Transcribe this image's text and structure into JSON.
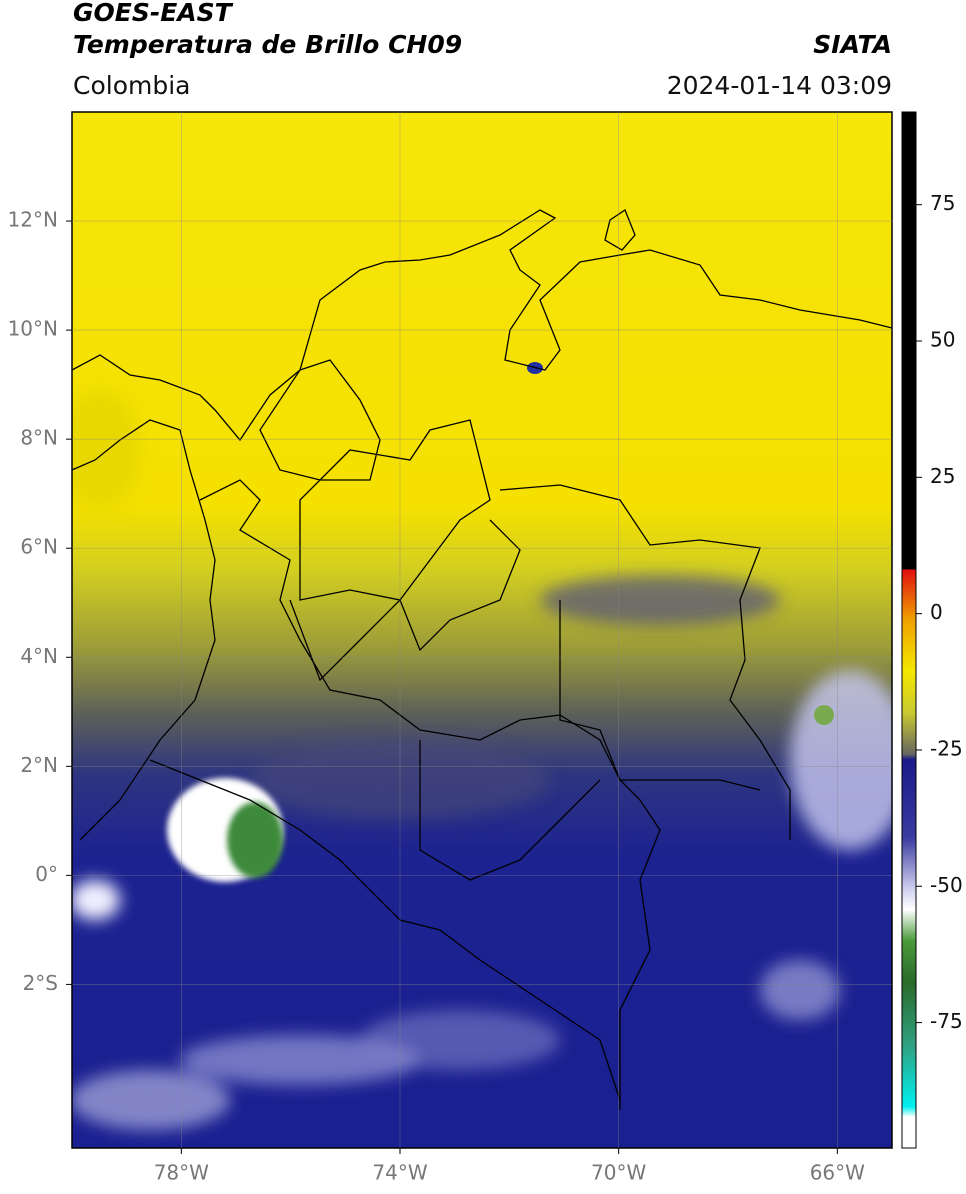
{
  "header": {
    "satellite": "GOES-EAST",
    "product": "Temperatura de Brillo CH09",
    "source": "SIATA",
    "region": "Colombia",
    "datetime": "2024-01-14 03:09"
  },
  "map": {
    "xlim": [
      -80,
      -65
    ],
    "ylim": [
      -5,
      14
    ],
    "xticks": [
      {
        "value": -78,
        "label": "78°W"
      },
      {
        "value": -74,
        "label": "74°W"
      },
      {
        "value": -70,
        "label": "70°W"
      },
      {
        "value": -66,
        "label": "66°W"
      }
    ],
    "yticks": [
      {
        "value": 12,
        "label": "12°N"
      },
      {
        "value": 10,
        "label": "10°N"
      },
      {
        "value": 8,
        "label": "8°N"
      },
      {
        "value": 6,
        "label": "6°N"
      },
      {
        "value": 4,
        "label": "4°N"
      },
      {
        "value": 2,
        "label": "2°N"
      },
      {
        "value": 0,
        "label": "0°"
      },
      {
        "value": -2,
        "label": "2°S"
      }
    ]
  },
  "colorbar": {
    "lim": [
      -98,
      92
    ],
    "ticks": [
      75,
      50,
      25,
      0,
      -25,
      -50,
      -75
    ]
  }
}
